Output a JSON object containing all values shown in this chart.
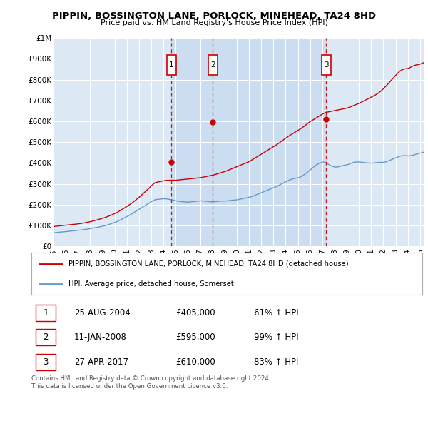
{
  "title": "PIPPIN, BOSSINGTON LANE, PORLOCK, MINEHEAD, TA24 8HD",
  "subtitle": "Price paid vs. HM Land Registry's House Price Index (HPI)",
  "legend_label_property": "PIPPIN, BOSSINGTON LANE, PORLOCK, MINEHEAD, TA24 8HD (detached house)",
  "legend_label_hpi": "HPI: Average price, detached house, Somerset",
  "footer": "Contains HM Land Registry data © Crown copyright and database right 2024.\nThis data is licensed under the Open Government Licence v3.0.",
  "sales": [
    {
      "label": "1",
      "date_str": "25-AUG-2004",
      "year_f": 2004.646,
      "price": 405000,
      "pct": "61%",
      "direction": "↑"
    },
    {
      "label": "2",
      "date_str": "11-JAN-2008",
      "year_f": 2008.029,
      "price": 595000,
      "pct": "99%",
      "direction": "↑"
    },
    {
      "label": "3",
      "date_str": "27-APR-2017",
      "year_f": 2017.319,
      "price": 610000,
      "pct": "83%",
      "direction": "↑"
    }
  ],
  "property_line_color": "#cc0000",
  "hpi_line_color": "#6699cc",
  "shade_color": "#c5d8ee",
  "vline_color": "#cc0000",
  "marker_box_color": "#cc0000",
  "plot_bg_color": "#dce9f5",
  "ylim": [
    0,
    1000000
  ],
  "xlim_start": 1995.0,
  "xlim_end": 2025.3,
  "hpi_monthly": {
    "start_year": 1995,
    "start_month": 1,
    "values": [
      65000,
      65500,
      66000,
      66500,
      67000,
      67500,
      68000,
      68300,
      68600,
      69000,
      69500,
      70000,
      70500,
      71000,
      71500,
      72000,
      72500,
      73000,
      73500,
      74000,
      74500,
      75000,
      75500,
      76000,
      76500,
      77000,
      77500,
      78000,
      78800,
      79500,
      80200,
      81000,
      81800,
      82500,
      83200,
      84000,
      84800,
      85600,
      86400,
      87200,
      88200,
      89200,
      90200,
      91200,
      92200,
      93200,
      94200,
      95200,
      96200,
      97200,
      98400,
      99600,
      101000,
      102500,
      104000,
      105500,
      107000,
      108800,
      110600,
      112400,
      114200,
      116000,
      118000,
      120000,
      122500,
      125000,
      127500,
      130000,
      132500,
      135000,
      137500,
      140000,
      142500,
      145000,
      147500,
      150000,
      153000,
      156000,
      159000,
      162000,
      165000,
      168000,
      171000,
      174000,
      177000,
      180000,
      183000,
      186000,
      189200,
      192400,
      195600,
      198800,
      202000,
      205000,
      208000,
      211000,
      214000,
      216500,
      219000,
      221500,
      224000,
      224500,
      225000,
      225500,
      226000,
      226500,
      227000,
      227500,
      228000,
      228000,
      228000,
      227500,
      227000,
      226000,
      225000,
      224000,
      223000,
      222000,
      221000,
      220000,
      219000,
      218000,
      217000,
      216000,
      215500,
      215000,
      214500,
      214000,
      213500,
      213000,
      212500,
      212000,
      212000,
      212500,
      213000,
      213500,
      214000,
      214500,
      215000,
      215500,
      216000,
      216500,
      217000,
      217500,
      218000,
      218000,
      218000,
      217500,
      217000,
      216500,
      216000,
      215500,
      215000,
      214500,
      214000,
      213500,
      213000,
      213500,
      214000,
      214500,
      215000,
      215500,
      216000,
      216500,
      217000,
      217000,
      217000,
      217000,
      217000,
      217500,
      218000,
      218500,
      219000,
      219500,
      220000,
      220500,
      221000,
      221500,
      222000,
      222500,
      223000,
      224000,
      225000,
      226000,
      227000,
      228000,
      229000,
      230000,
      231000,
      232000,
      233000,
      234000,
      235000,
      236500,
      238000,
      239500,
      241000,
      243000,
      245000,
      247000,
      249000,
      251000,
      253000,
      255000,
      257000,
      259000,
      261000,
      263000,
      265000,
      267000,
      269000,
      271000,
      273000,
      275000,
      277000,
      279000,
      281000,
      283000,
      285000,
      287000,
      289500,
      292000,
      294500,
      297000,
      299500,
      302000,
      304500,
      307000,
      309500,
      312000,
      314500,
      317000,
      319000,
      320500,
      322000,
      323500,
      325000,
      326000,
      327000,
      328000,
      329000,
      330000,
      332000,
      334000,
      337000,
      340000,
      343000,
      346000,
      350000,
      354000,
      358000,
      362000,
      366000,
      370000,
      374000,
      378000,
      382000,
      386000,
      390000,
      393000,
      396000,
      398000,
      400000,
      402000,
      404000,
      405000,
      404000,
      402000,
      400000,
      397000,
      394000,
      391000,
      388000,
      386000,
      384000,
      382000,
      381000,
      380000,
      380500,
      381000,
      382000,
      383000,
      384500,
      386000,
      387000,
      388000,
      389000,
      390000,
      391000,
      392000,
      394000,
      396000,
      398000,
      400000,
      402000,
      403000,
      404000,
      404500,
      405000,
      405000,
      404500,
      404000,
      403500,
      403000,
      402500,
      402000,
      401500,
      401000,
      400500,
      400000,
      399500,
      399000,
      399000,
      399500,
      400000,
      400500,
      401000,
      401500,
      402000,
      402500,
      403000,
      403000,
      403000,
      403000,
      403000,
      404000,
      405000,
      406000,
      408000,
      410000,
      412000,
      414000,
      416000,
      418000,
      420000,
      422000,
      424000,
      426000,
      428000,
      430000,
      432000,
      433000,
      434000,
      434500,
      435000,
      435000,
      435000,
      434500,
      434000,
      434000,
      434500,
      435000,
      436000,
      437000,
      438500,
      440000,
      441500,
      443000,
      444500,
      446000,
      447000,
      448000,
      449500,
      451000,
      452500,
      454000,
      455000,
      456000,
      457000,
      458000
    ]
  },
  "prop_monthly": {
    "start_year": 1995,
    "start_month": 1,
    "values": [
      95000,
      95500,
      96000,
      96500,
      97000,
      97500,
      98000,
      98400,
      98800,
      99200,
      99700,
      100200,
      100700,
      101200,
      101700,
      102200,
      102700,
      103200,
      103800,
      104400,
      105000,
      105600,
      106200,
      106800,
      107400,
      108000,
      108700,
      109500,
      110300,
      111100,
      112000,
      113000,
      114000,
      115000,
      116000,
      117000,
      118000,
      119200,
      120400,
      121600,
      122800,
      124200,
      125600,
      127000,
      128400,
      129800,
      131200,
      132600,
      134000,
      135400,
      137000,
      138600,
      140500,
      142400,
      144300,
      146200,
      148100,
      150200,
      152400,
      154600,
      156800,
      159000,
      161500,
      164000,
      167000,
      170000,
      173000,
      176000,
      179000,
      182000,
      185000,
      188000,
      191000,
      194000,
      197500,
      201000,
      204500,
      208000,
      211500,
      215000,
      219000,
      223000,
      227000,
      231000,
      235000,
      239000,
      243500,
      248000,
      252500,
      257000,
      261500,
      266000,
      270500,
      275000,
      280000,
      285000,
      290000,
      294000,
      298000,
      302000,
      306000,
      307000,
      308000,
      309000,
      310000,
      311000,
      312000,
      313000,
      314000,
      315000,
      316000,
      316500,
      317000,
      317000,
      317000,
      317000,
      317000,
      317000,
      317000,
      317000,
      317000,
      317500,
      318000,
      318500,
      319000,
      319500,
      320000,
      320500,
      321000,
      321500,
      322000,
      322500,
      323000,
      323500,
      324000,
      324500,
      325000,
      325500,
      326000,
      326500,
      327000,
      327500,
      328000,
      328500,
      329000,
      330000,
      331000,
      332000,
      333000,
      334000,
      335000,
      336000,
      337000,
      338000,
      339000,
      340000,
      341000,
      342000,
      343500,
      345000,
      346500,
      348000,
      349500,
      351000,
      352500,
      354000,
      355500,
      357000,
      358500,
      360000,
      362000,
      364000,
      366000,
      368000,
      370000,
      372000,
      374000,
      376000,
      378000,
      380000,
      382000,
      384000,
      386000,
      388000,
      390000,
      392000,
      394000,
      396000,
      398000,
      400000,
      402000,
      404000,
      406000,
      409000,
      412000,
      415000,
      418000,
      421000,
      424000,
      427000,
      430000,
      433000,
      436000,
      439000,
      442000,
      445000,
      448000,
      451000,
      454000,
      457000,
      460000,
      463000,
      466000,
      469000,
      472000,
      475000,
      478000,
      481000,
      484000,
      487000,
      490500,
      494000,
      497500,
      501000,
      504500,
      508000,
      511500,
      515000,
      518500,
      522000,
      525500,
      529000,
      532000,
      535000,
      538000,
      541000,
      544000,
      547000,
      550000,
      553000,
      556000,
      559000,
      562000,
      565000,
      568500,
      572000,
      575500,
      579000,
      583000,
      587000,
      591000,
      595000,
      598000,
      601000,
      604000,
      607000,
      610000,
      613000,
      616000,
      619000,
      622000,
      625000,
      628000,
      631000,
      634000,
      637000,
      639000,
      641000,
      643000,
      644000,
      645000,
      646000,
      647000,
      648000,
      649000,
      650000,
      651000,
      652000,
      653000,
      654000,
      655000,
      656000,
      657000,
      658000,
      659000,
      660000,
      661000,
      662000,
      663000,
      664500,
      666000,
      668000,
      670000,
      672000,
      674000,
      676000,
      678000,
      680000,
      682000,
      684000,
      686000,
      688000,
      690500,
      693000,
      695500,
      698000,
      700500,
      703000,
      705500,
      708000,
      710500,
      713000,
      715500,
      718000,
      720500,
      723000,
      726000,
      729000,
      732000,
      735000,
      739000,
      743000,
      747000,
      751000,
      756000,
      761000,
      766000,
      771000,
      776500,
      782000,
      787500,
      793000,
      798500,
      804000,
      809500,
      815000,
      820000,
      825000,
      830000,
      835000,
      840000,
      843000,
      846000,
      848000,
      850000,
      851000,
      852000,
      852500,
      853000,
      855000,
      857000,
      860000,
      863000,
      865000,
      867000,
      868500,
      870000,
      871000,
      872000,
      873000,
      874000,
      876000,
      878000,
      880000,
      882000,
      883000,
      884000,
      884500,
      885000,
      885000
    ]
  }
}
